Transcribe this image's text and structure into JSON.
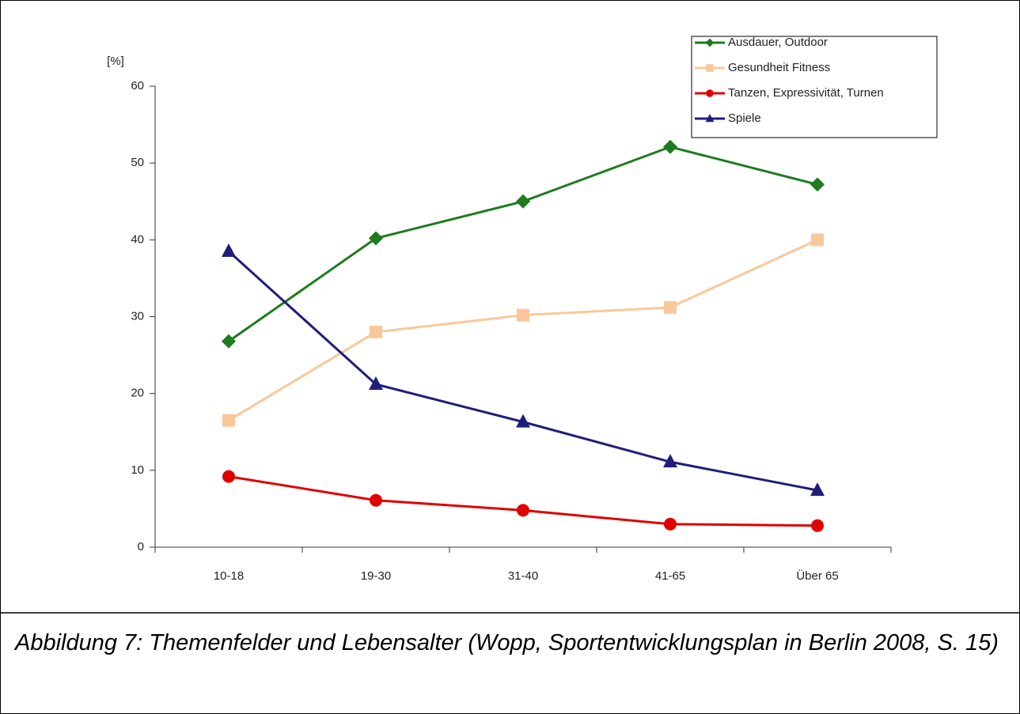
{
  "chart_data": {
    "type": "line",
    "y_label": "[%]",
    "categories": [
      "10-18",
      "19-30",
      "31-40",
      "41-65",
      "Über 65"
    ],
    "series": [
      {
        "name": "Ausdauer, Outdoor",
        "color": "#1e7b1e",
        "marker": "diamond",
        "values": [
          26.8,
          40.2,
          45,
          52.1,
          47.2
        ]
      },
      {
        "name": "Gesundheit Fitness",
        "color": "#f9c89a",
        "marker": "square",
        "values": [
          16.5,
          28,
          30.2,
          31.2,
          40
        ]
      },
      {
        "name": "Tanzen, Expressivität, Turnen",
        "color": "#e00000",
        "marker": "circle",
        "values": [
          9.2,
          6.1,
          4.8,
          3,
          2.8
        ]
      },
      {
        "name": "Spiele",
        "color": "#1f1f7a",
        "marker": "triangle",
        "values": [
          38.5,
          21.2,
          16.3,
          11.1,
          7.4
        ]
      }
    ],
    "ylim": [
      0,
      60
    ],
    "yticks": [
      0,
      10,
      20,
      30,
      40,
      50,
      60
    ],
    "legend": "top-right"
  },
  "caption": "Abbildung 7: Themenfelder und Lebensalter (Wopp, Sportentwicklungsplan in Berlin 2008, S. 15)"
}
